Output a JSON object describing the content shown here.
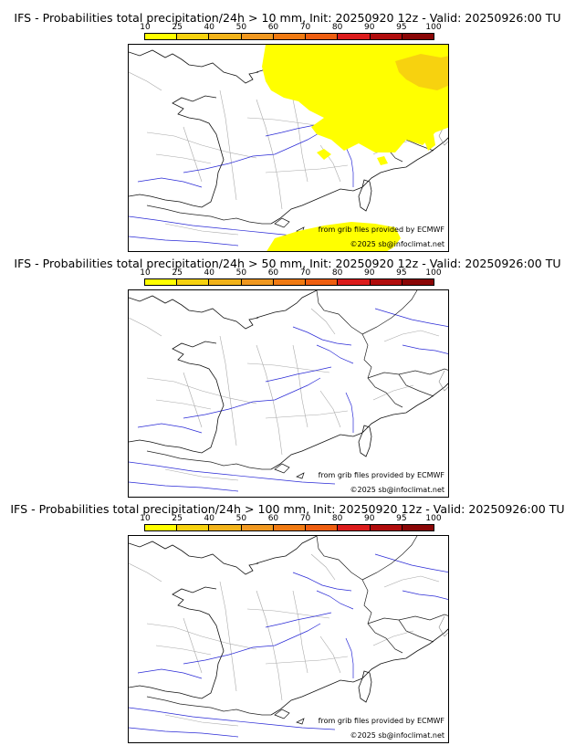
{
  "legend": {
    "ticks": [
      "10",
      "25",
      "40",
      "50",
      "60",
      "70",
      "80",
      "90",
      "95",
      "100"
    ],
    "colors": [
      "#ffff00",
      "#f7d20f",
      "#f2b31a",
      "#f09820",
      "#f07a12",
      "#ee5e10",
      "#dc1c1c",
      "#b00c0c",
      "#8a0606",
      "#5e0000"
    ]
  },
  "panels": [
    {
      "title": "IFS - Probabilities total precipitation/24h > 10 mm, Init: 20250920 12z - Valid: 20250926:00 TU",
      "credit_source": "from grib files provided by ECMWF",
      "credit_copyright": "©2025 sb@infoclimat.net",
      "has_rain_area": true
    },
    {
      "title": "IFS - Probabilities total precipitation/24h > 50 mm, Init: 20250920 12z - Valid: 20250926:00 TU",
      "credit_source": "from grib files provided by ECMWF",
      "credit_copyright": "©2025 sb@infoclimat.net",
      "has_rain_area": false
    },
    {
      "title": "IFS - Probabilities total precipitation/24h > 100 mm, Init: 20250920 12z - Valid: 20250926:00 TU",
      "credit_source": "from grib files provided by ECMWF",
      "credit_copyright": "©2025 sb@infoclimat.net",
      "has_rain_area": false
    }
  ]
}
